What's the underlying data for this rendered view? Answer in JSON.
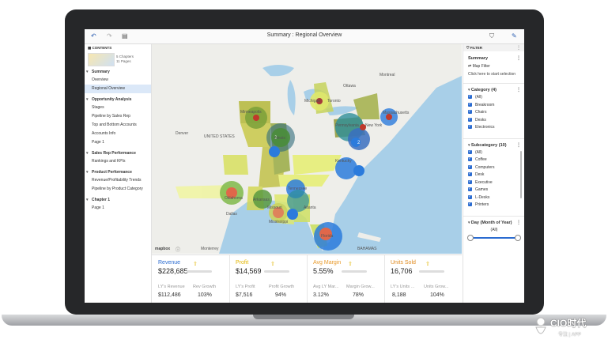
{
  "topbar": {
    "title": "Summary : Regional Overview"
  },
  "contents": {
    "header": "CONTENTS",
    "chapters": "5 Chapters",
    "pages": "11 Pages",
    "sections": [
      {
        "title": "Summary",
        "items": [
          "Overview",
          "Regional Overview"
        ]
      },
      {
        "title": "Opportunity Analysis",
        "items": [
          "Stages",
          "Pipeline by Sales Rep",
          "Top and Bottom Accounts",
          "Accounts Info",
          "Page 1"
        ]
      },
      {
        "title": "Sales Rep Performance",
        "items": [
          "Rankings and KPIs"
        ]
      },
      {
        "title": "Product Performance",
        "items": [
          "Revenue/Profitability Trends",
          "Pipeline by Product Category"
        ]
      },
      {
        "title": "Chapter 1",
        "items": [
          "Page 1"
        ]
      }
    ]
  },
  "map": {
    "labels": [
      "Minneapolis",
      "Michigan",
      "Toronto",
      "Ottawa",
      "Montreal",
      "Massachusetts",
      "New York",
      "Pennsylvania",
      "UNITED STATES",
      "Denver",
      "Illinois",
      "Kentucky",
      "Tennessee",
      "Oklahoma",
      "Arkansas",
      "Atlanta",
      "Dallas",
      "Mississippi",
      "Florida",
      "Monterrey",
      "BAHAMAS",
      "Missouri"
    ],
    "clusters": [
      "2",
      "2"
    ],
    "attribution": "mapbox"
  },
  "kpis": [
    {
      "name": "Revenue",
      "value": "$228,685",
      "color": "#2a6bd0",
      "sub1_label": "LY's Revenue",
      "sub1_value": "$112,486",
      "sub2_label": "Rev Growth",
      "sub2_value": "103%"
    },
    {
      "name": "Profit",
      "value": "$14,569",
      "color": "#e2b500",
      "sub1_label": "LY's Profit",
      "sub1_value": "$7,516",
      "sub2_label": "Profit Growth",
      "sub2_value": "94%"
    },
    {
      "name": "Avg Margin",
      "value": "5.55%",
      "color": "#e89a2b",
      "sub1_label": "Avg LY Mar...",
      "sub1_value": "3.12%",
      "sub2_label": "Margin Grow...",
      "sub2_value": "78%"
    },
    {
      "name": "Units Sold",
      "value": "16,706",
      "color": "#e08a1e",
      "sub1_label": "LY's Units ...",
      "sub1_value": "8,188",
      "sub2_label": "Units Grow...",
      "sub2_value": "104%"
    }
  ],
  "filter": {
    "header": "FILTER",
    "summary_label": "Summary",
    "map_filter": "Map Filter",
    "hint": "Click here to start selection",
    "category": {
      "title": "Category (4)",
      "options": [
        "(All)",
        "Breakroom",
        "Chairs",
        "Desks",
        "Electronics"
      ]
    },
    "subcategory": {
      "title": "Subcategory (10)",
      "options": [
        "(All)",
        "Coffee",
        "Computers",
        "Desk",
        "Executive",
        "Games",
        "L-Desks",
        "Printers"
      ]
    },
    "day": {
      "title": "Day (Month of Year)",
      "value": "(All)"
    }
  },
  "watermark": {
    "brand": "CIO时代",
    "tagline": "专注 | APP"
  }
}
